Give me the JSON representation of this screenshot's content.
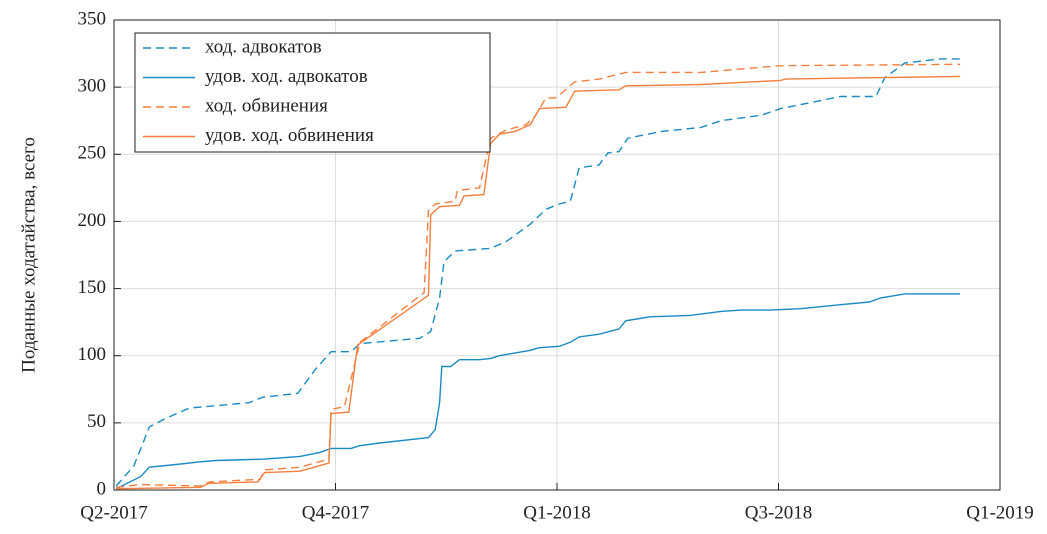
{
  "chart_data": {
    "type": "line",
    "ylabel": "Поданные ходатайства, всего",
    "xlim": [
      0,
      4
    ],
    "ylim": [
      0,
      350
    ],
    "xticks": [
      {
        "value": 0,
        "label": "Q2-2017"
      },
      {
        "value": 1,
        "label": "Q4-2017"
      },
      {
        "value": 2,
        "label": "Q1-2018"
      },
      {
        "value": 3,
        "label": "Q3-2018"
      },
      {
        "value": 4,
        "label": "Q1-2019"
      }
    ],
    "yticks": [
      0,
      50,
      100,
      150,
      200,
      250,
      300,
      350
    ],
    "grid": true,
    "legend": "upper left",
    "series": [
      {
        "name": "ход. адвокатов",
        "color": "#1a8ac4",
        "dashed": true,
        "x": [
          0.01,
          0.09,
          0.16,
          0.23,
          0.34,
          0.61,
          0.67,
          0.83,
          0.91,
          0.98,
          1.07,
          1.11,
          1.38,
          1.43,
          1.47,
          1.49,
          1.54,
          1.7,
          1.77,
          1.88,
          1.95,
          2.01,
          2.06,
          2.1,
          2.19,
          2.23,
          2.28,
          2.32,
          2.47,
          2.65,
          2.74,
          2.92,
          3.01,
          3.19,
          3.28,
          3.44,
          3.48,
          3.57,
          3.73,
          3.82
        ],
        "values": [
          3,
          18,
          47,
          53,
          61,
          65,
          69,
          72,
          90,
          103,
          103,
          109,
          113,
          118,
          143,
          170,
          178,
          180,
          185,
          198,
          209,
          213,
          215,
          240,
          242,
          251,
          252,
          262,
          267,
          270,
          275,
          279,
          284,
          290,
          293,
          293,
          307,
          318,
          321,
          321
        ]
      },
      {
        "name": "удов. ход. адвокатов",
        "color": "#1a8ac4",
        "dashed": false,
        "x": [
          0.01,
          0.12,
          0.16,
          0.28,
          0.39,
          0.46,
          0.68,
          0.84,
          0.93,
          0.98,
          1.07,
          1.11,
          1.2,
          1.42,
          1.45,
          1.47,
          1.48,
          1.52,
          1.56,
          1.65,
          1.7,
          1.74,
          1.88,
          1.92,
          2.01,
          2.06,
          2.1,
          2.19,
          2.28,
          2.31,
          2.42,
          2.6,
          2.74,
          2.83,
          2.96,
          3.1,
          3.28,
          3.41,
          3.46,
          3.57,
          3.82
        ],
        "values": [
          1,
          10,
          17,
          19,
          21,
          22,
          23,
          25,
          28,
          31,
          31,
          33,
          35,
          39,
          45,
          65,
          92,
          92,
          97,
          97,
          98,
          100,
          104,
          106,
          107,
          110,
          114,
          116,
          120,
          126,
          129,
          130,
          133,
          134,
          134,
          135,
          138,
          140,
          143,
          146,
          146
        ]
      },
      {
        "name": "ход. обвинения",
        "color": "#f47f3f",
        "dashed": true,
        "x": [
          0.01,
          0.12,
          0.39,
          0.43,
          0.66,
          0.68,
          0.84,
          0.97,
          0.98,
          1.04,
          1.11,
          1.4,
          1.42,
          1.45,
          1.54,
          1.55,
          1.65,
          1.7,
          1.77,
          1.86,
          1.9,
          1.95,
          1.99,
          2.01,
          2.08,
          2.19,
          2.31,
          2.65,
          3.01,
          3.82
        ],
        "values": [
          2,
          4,
          3,
          6,
          8,
          15,
          17,
          23,
          60,
          62,
          110,
          147,
          208,
          213,
          215,
          223,
          225,
          262,
          268,
          272,
          278,
          292,
          292,
          294,
          304,
          306,
          311,
          311,
          316,
          317
        ]
      },
      {
        "name": "удов. ход. обвинения",
        "color": "#f47f3f",
        "dashed": false,
        "x": [
          0.01,
          0.39,
          0.43,
          0.65,
          0.68,
          0.84,
          0.97,
          0.98,
          1.06,
          1.1,
          1.42,
          1.43,
          1.47,
          1.56,
          1.58,
          1.67,
          1.7,
          1.74,
          1.81,
          1.88,
          1.92,
          2.04,
          2.08,
          2.28,
          2.31,
          2.65,
          3.01,
          3.03,
          3.82
        ],
        "values": [
          1,
          2,
          5,
          6,
          13,
          14,
          20,
          57,
          58,
          108,
          145,
          205,
          211,
          212,
          219,
          220,
          258,
          265,
          267,
          272,
          284,
          285,
          297,
          298,
          301,
          302,
          305,
          306,
          308
        ]
      }
    ]
  }
}
